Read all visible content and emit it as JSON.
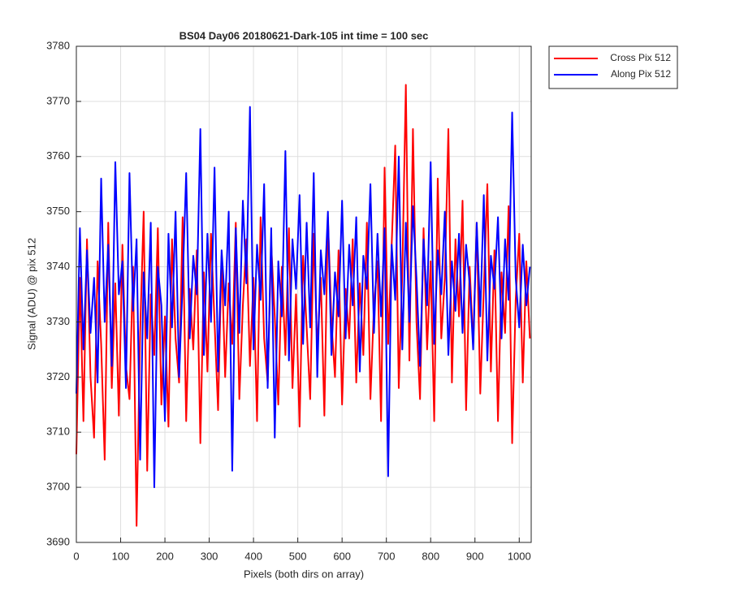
{
  "chart_data": {
    "type": "line",
    "title": "BS04 Day06 20180621-Dark-105 int time = 100 sec",
    "x_label": "Pixels (both dirs on array)",
    "y_label": "Signal (ADU) @ pix 512",
    "xlim": [
      0,
      1027
    ],
    "ylim": [
      3690,
      3780
    ],
    "xticks": [
      0,
      100,
      200,
      300,
      400,
      500,
      600,
      700,
      800,
      900,
      1000
    ],
    "yticks": [
      3690,
      3700,
      3710,
      3720,
      3730,
      3740,
      3750,
      3760,
      3770,
      3780
    ],
    "grid": true,
    "legend": "outside-top-right",
    "x": [
      0,
      8,
      16,
      24,
      32,
      40,
      48,
      56,
      64,
      72,
      80,
      88,
      96,
      104,
      112,
      120,
      128,
      136,
      144,
      152,
      160,
      168,
      176,
      184,
      192,
      200,
      208,
      216,
      224,
      232,
      240,
      248,
      256,
      264,
      272,
      280,
      288,
      296,
      304,
      312,
      320,
      328,
      336,
      344,
      352,
      360,
      368,
      376,
      384,
      392,
      400,
      408,
      416,
      424,
      432,
      440,
      448,
      456,
      464,
      472,
      480,
      488,
      496,
      504,
      512,
      520,
      528,
      536,
      544,
      552,
      560,
      568,
      576,
      584,
      592,
      600,
      608,
      616,
      624,
      632,
      640,
      648,
      656,
      664,
      672,
      680,
      688,
      696,
      704,
      712,
      720,
      728,
      736,
      744,
      752,
      760,
      768,
      776,
      784,
      792,
      800,
      808,
      816,
      824,
      832,
      840,
      848,
      856,
      864,
      872,
      880,
      888,
      896,
      904,
      912,
      920,
      928,
      936,
      944,
      952,
      960,
      968,
      976,
      984,
      992,
      1000,
      1008,
      1016,
      1024
    ],
    "series": [
      {
        "name": "Cross Pix 512",
        "color": "#ff0000",
        "values": [
          3706,
          3738,
          3712,
          3745,
          3720,
          3709,
          3741,
          3726,
          3705,
          3748,
          3718,
          3737,
          3713,
          3744,
          3722,
          3716,
          3740,
          3693,
          3728,
          3750,
          3703,
          3735,
          3724,
          3747,
          3715,
          3731,
          3711,
          3745,
          3727,
          3719,
          3749,
          3712,
          3736,
          3725,
          3743,
          3708,
          3739,
          3721,
          3746,
          3730,
          3714,
          3742,
          3720,
          3737,
          3726,
          3748,
          3716,
          3733,
          3745,
          3722,
          3738,
          3712,
          3749,
          3727,
          3719,
          3744,
          3731,
          3715,
          3740,
          3724,
          3747,
          3718,
          3735,
          3711,
          3742,
          3729,
          3716,
          3746,
          3725,
          3738,
          3713,
          3749,
          3730,
          3720,
          3743,
          3715,
          3736,
          3727,
          3745,
          3719,
          3737,
          3724,
          3748,
          3716,
          3733,
          3741,
          3712,
          3758,
          3726,
          3744,
          3762,
          3718,
          3739,
          3773,
          3723,
          3765,
          3730,
          3716,
          3747,
          3725,
          3741,
          3712,
          3756,
          3727,
          3738,
          3765,
          3719,
          3745,
          3731,
          3752,
          3714,
          3740,
          3726,
          3748,
          3717,
          3736,
          3755,
          3721,
          3743,
          3712,
          3739,
          3728,
          3751,
          3708,
          3734,
          3746,
          3719,
          3741,
          3727
        ]
      },
      {
        "name": "Along Pix 512",
        "color": "#0000ff",
        "values": [
          3717,
          3747,
          3725,
          3743,
          3728,
          3738,
          3719,
          3756,
          3730,
          3744,
          3722,
          3759,
          3735,
          3741,
          3718,
          3757,
          3732,
          3745,
          3705,
          3739,
          3727,
          3748,
          3700,
          3740,
          3733,
          3712,
          3746,
          3729,
          3750,
          3720,
          3737,
          3757,
          3727,
          3742,
          3735,
          3765,
          3724,
          3746,
          3730,
          3758,
          3721,
          3743,
          3733,
          3750,
          3703,
          3747,
          3728,
          3752,
          3737,
          3769,
          3725,
          3744,
          3734,
          3755,
          3718,
          3747,
          3709,
          3741,
          3731,
          3761,
          3723,
          3745,
          3736,
          3753,
          3726,
          3748,
          3729,
          3757,
          3720,
          3743,
          3735,
          3750,
          3724,
          3739,
          3731,
          3752,
          3727,
          3744,
          3733,
          3749,
          3721,
          3742,
          3736,
          3755,
          3728,
          3746,
          3731,
          3747,
          3702,
          3744,
          3734,
          3760,
          3725,
          3748,
          3730,
          3751,
          3738,
          3722,
          3745,
          3733,
          3759,
          3726,
          3743,
          3735,
          3750,
          3724,
          3741,
          3732,
          3746,
          3728,
          3744,
          3737,
          3725,
          3748,
          3731,
          3753,
          3723,
          3742,
          3736,
          3749,
          3727,
          3745,
          3734,
          3768,
          3738,
          3729,
          3744,
          3733,
          3740
        ]
      }
    ]
  }
}
